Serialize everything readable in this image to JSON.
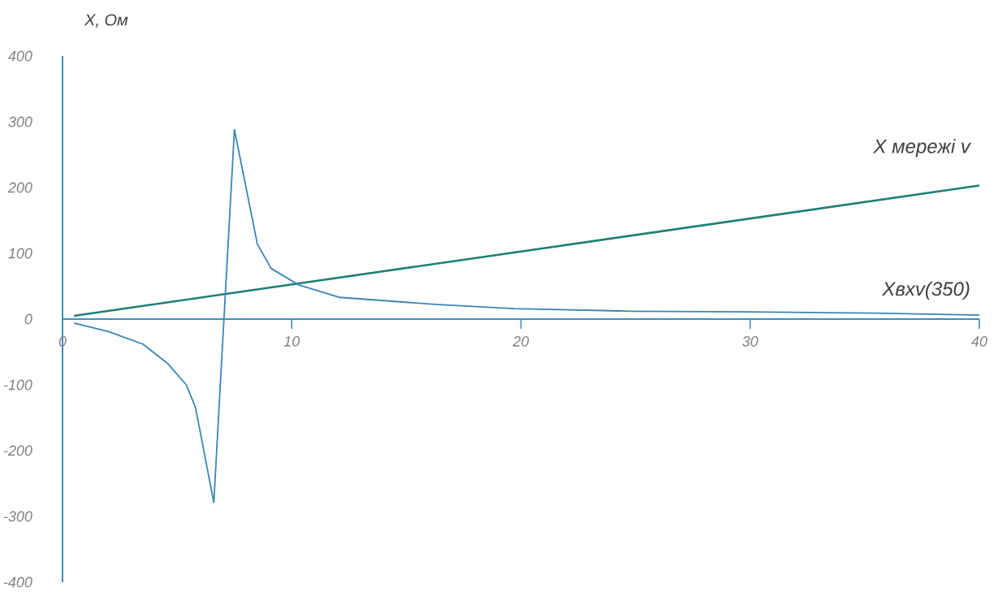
{
  "chart_data": {
    "type": "line",
    "ylabel": "X, Ом",
    "xlim": [
      0,
      40
    ],
    "xticks": [
      0,
      10,
      20,
      30,
      40
    ],
    "ylim": [
      -400,
      400
    ],
    "yticks": [
      -400,
      -300,
      -200,
      -100,
      0,
      100,
      200,
      300,
      400
    ],
    "series": [
      {
        "name": "X мережі v",
        "color": "#1f7f7a",
        "x": [
          0.5,
          40
        ],
        "values": [
          5,
          203
        ]
      },
      {
        "name": "Xвхv(350)",
        "color": "#3b86b5",
        "x": [
          0.5,
          2.0,
          3.5,
          4.6,
          5.4,
          5.8,
          6.6,
          7.5,
          8.5,
          9.1,
          10.3,
          12.1,
          16.4,
          19.7,
          24.8,
          30,
          35.4,
          40
        ],
        "values": [
          -6,
          -19,
          -38,
          -68,
          -100,
          -134,
          -279,
          288,
          114,
          77,
          52,
          33,
          22,
          16,
          12,
          11,
          9,
          6
        ]
      }
    ]
  }
}
